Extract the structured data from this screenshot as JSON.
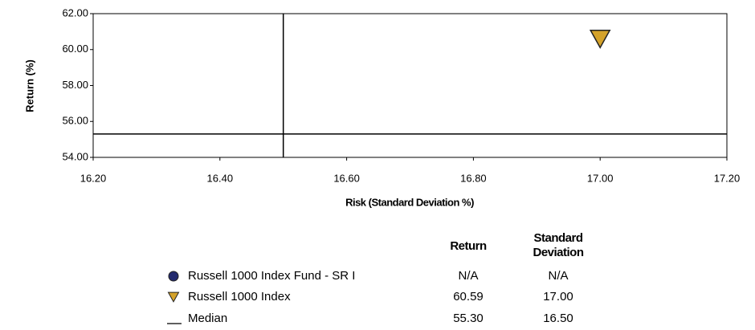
{
  "chart_data": {
    "type": "scatter",
    "xlabel": "Risk (Standard Deviation %)",
    "ylabel": "Return (%)",
    "xlim": [
      16.2,
      17.2
    ],
    "ylim": [
      54,
      62
    ],
    "xticks": [
      {
        "value": 16.2,
        "label": "16.20"
      },
      {
        "value": 16.4,
        "label": "16.40"
      },
      {
        "value": 16.6,
        "label": "16.60"
      },
      {
        "value": 16.8,
        "label": "16.80"
      },
      {
        "value": 17.0,
        "label": "17.00"
      },
      {
        "value": 17.2,
        "label": "17.20"
      }
    ],
    "yticks": [
      {
        "value": 54,
        "label": "54.00"
      },
      {
        "value": 56,
        "label": "56.00"
      },
      {
        "value": 58,
        "label": "58.00"
      },
      {
        "value": 60,
        "label": "60.00"
      },
      {
        "value": 62,
        "label": "62.00"
      }
    ],
    "columns": [
      "Return",
      "Standard Deviation"
    ],
    "series": [
      {
        "name": "Russell 1000 Index Fund - SR I",
        "color": "#232a6e",
        "marker": "circle",
        "x": null,
        "y": null,
        "x_label": "N/A",
        "y_label": "N/A"
      },
      {
        "name": "Russell 1000 Index",
        "color": "#d4a22a",
        "marker": "triangle",
        "x": 17.0,
        "y": 60.59,
        "x_label": "17.00",
        "y_label": "60.59"
      },
      {
        "name": "Median",
        "color": "#000000",
        "marker": "line",
        "x": 16.5,
        "y": 55.3,
        "x_label": "16.50",
        "y_label": "55.30"
      }
    ]
  }
}
